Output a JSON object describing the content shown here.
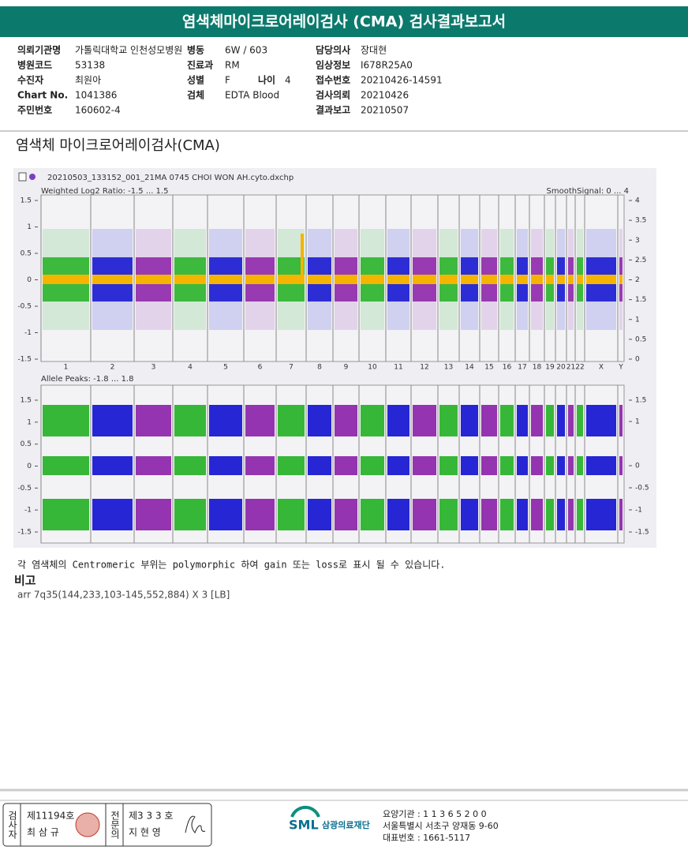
{
  "header": {
    "title": "염색체마이크로어레이검사 (CMA) 검사결과보고서"
  },
  "info": [
    [
      {
        "label": "의뢰기관명",
        "value": "가톨릭대학교 인천성모병원"
      },
      {
        "label": "병동",
        "value": "6W / 603"
      },
      {
        "label": "담당의사",
        "value": "장대현"
      }
    ],
    [
      {
        "label": "병원코드",
        "value": "53138"
      },
      {
        "label": "진료과",
        "value": "RM"
      },
      {
        "label": "임상정보",
        "value": "I678R25A0"
      }
    ],
    [
      {
        "label": "수진자",
        "value": "최원아"
      },
      {
        "label": "성별",
        "value": "F"
      },
      {
        "label": "접수번호",
        "value": "20210426-14591"
      }
    ],
    [
      {
        "label": "Chart No.",
        "value": "1041386"
      },
      {
        "label": "검체",
        "value": "EDTA Blood"
      },
      {
        "label": "검사의뢰",
        "value": "20210426"
      }
    ],
    [
      {
        "label": "주민번호",
        "value": "160602-4"
      },
      {
        "label": "결과보고",
        "value": "20210507"
      }
    ]
  ],
  "age": {
    "label": "나이",
    "value": "4"
  },
  "section_title": "염색체 마이크로어레이검사(CMA)",
  "plot": {
    "file": "20210503_133152_001_21MA 0745 CHOI WON AH.cyto.dxchp",
    "panel1": {
      "label": "Weighted Log2 Ratio: -1.5 ... 1.5",
      "right_label": "SmoothSignal: 0 ... 4",
      "left_ticks": [
        "1.5",
        "1",
        "0.5",
        "0",
        "-0.5",
        "-1",
        "-1.5"
      ],
      "right_ticks": [
        "4",
        "3.5",
        "3",
        "2.5",
        "2",
        "1.5",
        "1",
        "0.5",
        "0"
      ]
    },
    "chromosomes": [
      "1",
      "2",
      "3",
      "4",
      "5",
      "6",
      "7",
      "8",
      "9",
      "10",
      "11",
      "12",
      "13",
      "14",
      "15",
      "16",
      "17",
      "18",
      "19",
      "20",
      "21",
      "22",
      "X",
      "Y"
    ],
    "panel2": {
      "label": "Allele Peaks: -1.8 ... 1.8",
      "left_ticks": [
        "1.5",
        "1",
        "0.5",
        "0",
        "-0.5",
        "-1",
        "-1.5"
      ],
      "right_ticks": [
        "1.5",
        "1",
        "0",
        "-0.5",
        "-1",
        "-1.5"
      ]
    }
  },
  "note": "각 염색체의 Centromeric 부위는 polymorphic 하여 gain 또는 loss로 표시 될 수 있습니다.",
  "remarks": {
    "title": "비고",
    "text": "arr 7q35(144,233,103-145,552,884) X 3 [LB]"
  },
  "footer": {
    "examiner": "검사자",
    "examiner_no": "제11194호",
    "examiner_name": "최 삼 규",
    "specialist": "전문의",
    "specialist_no": "제3 3 3 호",
    "specialist_name": "지 현 영",
    "logo": "SML",
    "org": "삼광의료재단",
    "code": "요양기관 : 1 1 3 6 5 2 0 0",
    "address": "서울특별시 서초구 양재동 9-60",
    "phone": "대표번호 : 1661-5117"
  }
}
